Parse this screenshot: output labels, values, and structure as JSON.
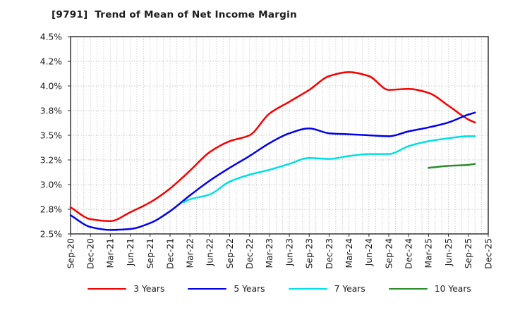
{
  "chart_data": {
    "type": "line",
    "title": "[9791]  Trend of Mean of Net Income Margin",
    "x_axis": {
      "categories": [
        "Sep-20",
        "Dec-20",
        "Mar-21",
        "Jun-21",
        "Sep-21",
        "Dec-21",
        "Mar-22",
        "Jun-22",
        "Sep-22",
        "Dec-22",
        "Mar-23",
        "Jun-23",
        "Sep-23",
        "Dec-23",
        "Mar-24",
        "Jun-24",
        "Sep-24",
        "Dec-24",
        "Mar-25",
        "Jun-25",
        "Sep-25",
        "Dec-25"
      ],
      "months_per_tick": 3,
      "total_months": 63,
      "minor_grid": "monthly"
    },
    "y_axis": {
      "min": 2.5,
      "max": 4.5,
      "tick_values": [
        4.5,
        4.25,
        4.0,
        3.75,
        3.5,
        3.25,
        3.0,
        2.75,
        2.5
      ],
      "tick_labels": [
        "4.5%",
        "4.2%",
        "4.0%",
        "3.8%",
        "3.5%",
        "3.2%",
        "3.0%",
        "2.8%",
        "2.5%"
      ],
      "grid": true
    },
    "series": [
      {
        "name": "3 Years",
        "color": "#f80000",
        "points": [
          [
            0,
            2.77
          ],
          [
            3,
            2.65
          ],
          [
            6,
            2.63
          ],
          [
            9,
            2.72
          ],
          [
            12,
            2.82
          ],
          [
            15,
            2.96
          ],
          [
            18,
            3.14
          ],
          [
            21,
            3.33
          ],
          [
            24,
            3.44
          ],
          [
            27,
            3.5
          ],
          [
            30,
            3.72
          ],
          [
            33,
            3.84
          ],
          [
            36,
            3.96
          ],
          [
            39,
            4.1
          ],
          [
            42,
            4.14
          ],
          [
            45,
            4.1
          ],
          [
            48,
            3.96
          ],
          [
            51,
            3.97
          ],
          [
            54,
            3.93
          ],
          [
            57,
            3.8
          ],
          [
            60,
            3.66
          ],
          [
            61,
            3.63
          ]
        ]
      },
      {
        "name": "5 Years",
        "color": "#0000ee",
        "points": [
          [
            0,
            2.69
          ],
          [
            3,
            2.57
          ],
          [
            6,
            2.54
          ],
          [
            9,
            2.55
          ],
          [
            12,
            2.61
          ],
          [
            15,
            2.73
          ],
          [
            18,
            2.89
          ],
          [
            21,
            3.04
          ],
          [
            24,
            3.17
          ],
          [
            27,
            3.29
          ],
          [
            30,
            3.42
          ],
          [
            33,
            3.52
          ],
          [
            36,
            3.57
          ],
          [
            39,
            3.52
          ],
          [
            42,
            3.51
          ],
          [
            45,
            3.5
          ],
          [
            48,
            3.49
          ],
          [
            51,
            3.54
          ],
          [
            54,
            3.58
          ],
          [
            57,
            3.63
          ],
          [
            60,
            3.71
          ],
          [
            61,
            3.73
          ]
        ]
      },
      {
        "name": "7 Years",
        "color": "#00dfe8",
        "points": [
          [
            17,
            2.82
          ],
          [
            18,
            2.85
          ],
          [
            21,
            2.9
          ],
          [
            24,
            3.03
          ],
          [
            27,
            3.1
          ],
          [
            30,
            3.15
          ],
          [
            33,
            3.21
          ],
          [
            36,
            3.27
          ],
          [
            39,
            3.26
          ],
          [
            42,
            3.29
          ],
          [
            45,
            3.31
          ],
          [
            48,
            3.31
          ],
          [
            51,
            3.39
          ],
          [
            54,
            3.44
          ],
          [
            57,
            3.47
          ],
          [
            60,
            3.49
          ],
          [
            61,
            3.49
          ]
        ]
      },
      {
        "name": "10 Years",
        "color": "#2a8c2a",
        "points": [
          [
            54,
            3.17
          ],
          [
            57,
            3.19
          ],
          [
            60,
            3.2
          ],
          [
            61,
            3.21
          ]
        ]
      }
    ],
    "legend_position": "bottom-center",
    "styles": {
      "grid_color": "#a8a8a8",
      "border_color": "#262626",
      "tick_label_color": "#1a1a1a",
      "background": "#ffffff"
    }
  }
}
